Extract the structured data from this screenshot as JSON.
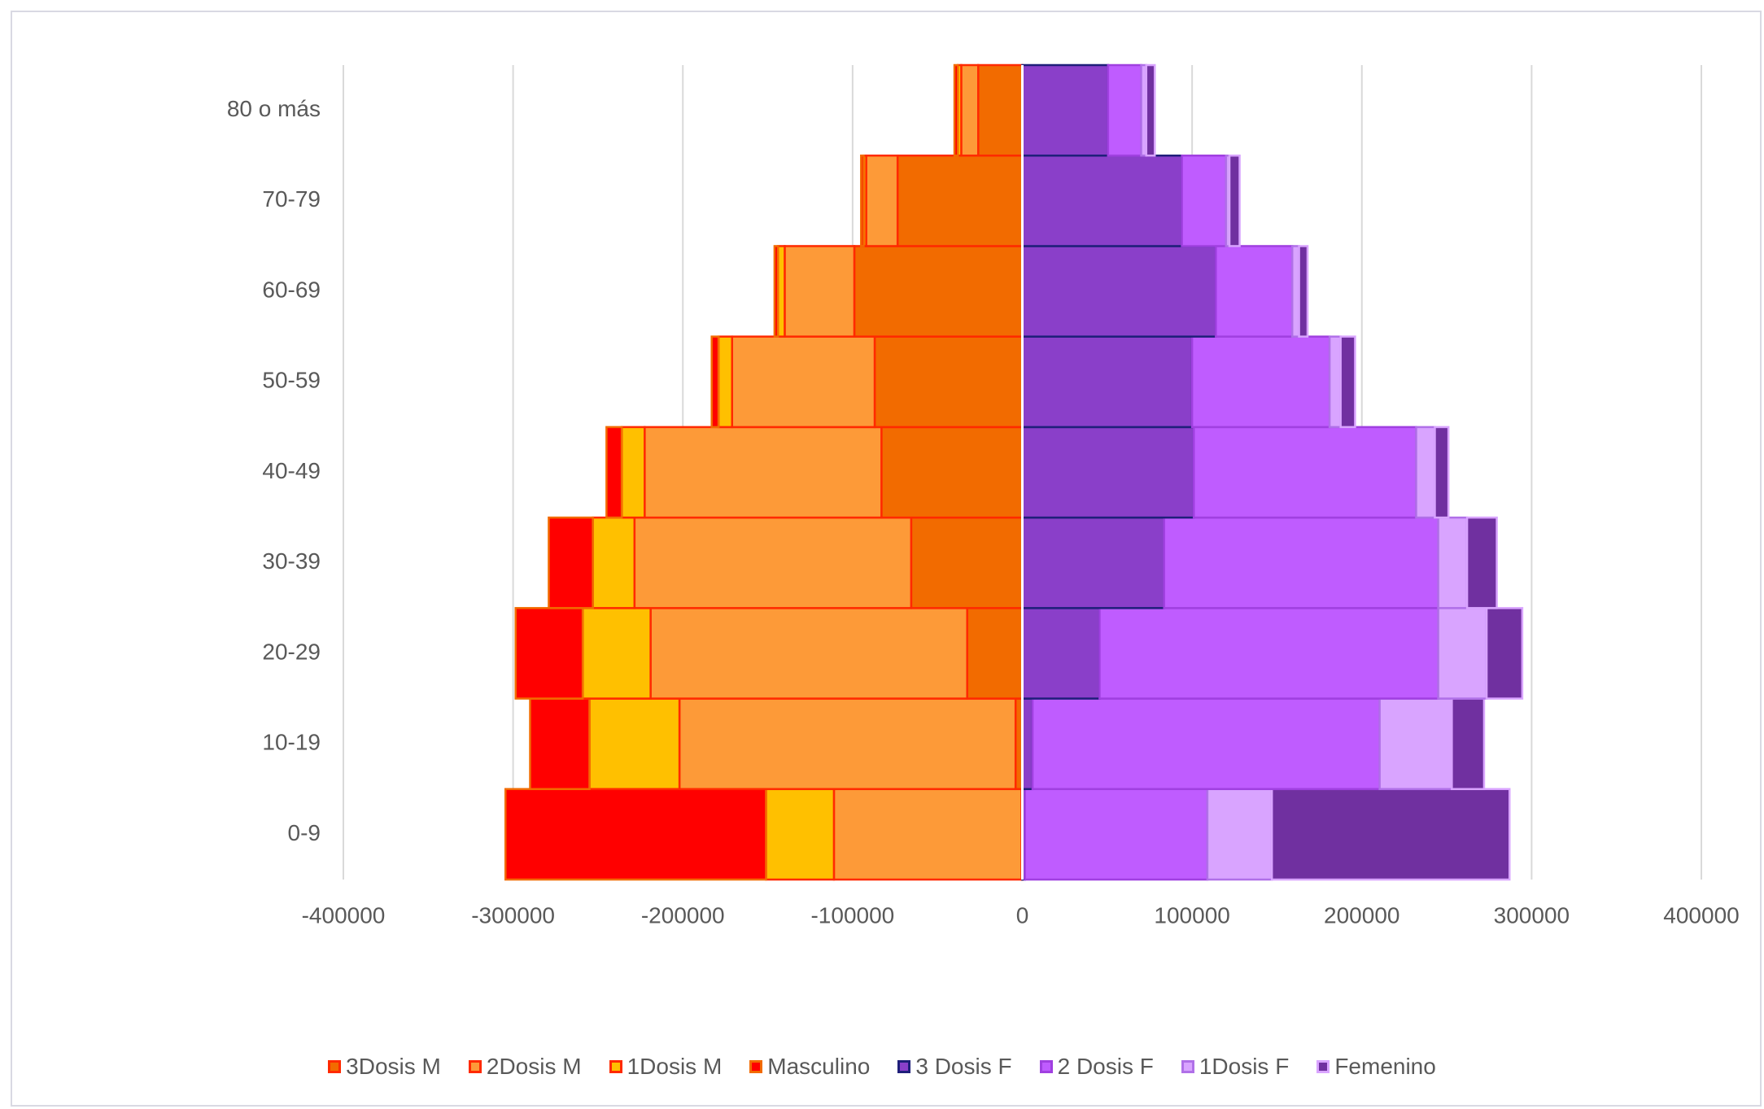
{
  "chart_data": {
    "type": "bar",
    "orientation": "horizontal",
    "stacked": true,
    "categories": [
      "0-9",
      "10-19",
      "20-29",
      "30-39",
      "40-49",
      "50-59",
      "60-69",
      "70-79",
      "80 o más"
    ],
    "series": [
      {
        "name": "3Dosis M",
        "color": "#f26b00",
        "edgecolor": "#ff2a00",
        "values": [
          -500,
          -4000,
          -32500,
          -65500,
          -83000,
          -87000,
          -99000,
          -73500,
          -26000
        ]
      },
      {
        "name": "2Dosis M",
        "color": "#fd9a38",
        "edgecolor": "#ff2a00",
        "values": [
          -110500,
          -198000,
          -186500,
          -163000,
          -139500,
          -84000,
          -41000,
          -18500,
          -10000
        ]
      },
      {
        "name": "1Dosis M",
        "color": "#ffc000",
        "edgecolor": "#ff2a00",
        "values": [
          -40000,
          -53000,
          -40000,
          -24500,
          -13500,
          -8000,
          -4000,
          -1500,
          -2000
        ]
      },
      {
        "name": "Masculino",
        "color": "#ff0000",
        "edgecolor": "#f26b00",
        "values": [
          -153500,
          -35000,
          -39500,
          -26000,
          -9000,
          -4000,
          -2000,
          -1500,
          -2000
        ]
      },
      {
        "name": "3 Dosis F",
        "color": "#8a3fc9",
        "edgecolor": "#1f1f7a",
        "values": [
          1500,
          6000,
          45500,
          83500,
          101000,
          100000,
          114000,
          94000,
          50500
        ]
      },
      {
        "name": "2 Dosis F",
        "color": "#bf5cff",
        "edgecolor": "#a040e0",
        "values": [
          107500,
          204500,
          199500,
          161500,
          131000,
          81000,
          45000,
          26000,
          19500
        ]
      },
      {
        "name": "1Dosis F",
        "color": "#d9a4ff",
        "edgecolor": "#b070e8",
        "values": [
          38000,
          42500,
          28500,
          17000,
          11000,
          6500,
          4000,
          2000,
          3000
        ]
      },
      {
        "name": "Femenino",
        "color": "#7030a0",
        "edgecolor": "#d9a4ff",
        "values": [
          140000,
          19000,
          21000,
          17500,
          8000,
          8500,
          5000,
          6000,
          5000
        ]
      }
    ],
    "xlim": [
      -400000,
      400000
    ],
    "xticks": [
      -400000,
      -300000,
      -200000,
      -100000,
      0,
      100000,
      200000,
      300000,
      400000
    ],
    "grid": true,
    "legend": "bottom"
  }
}
